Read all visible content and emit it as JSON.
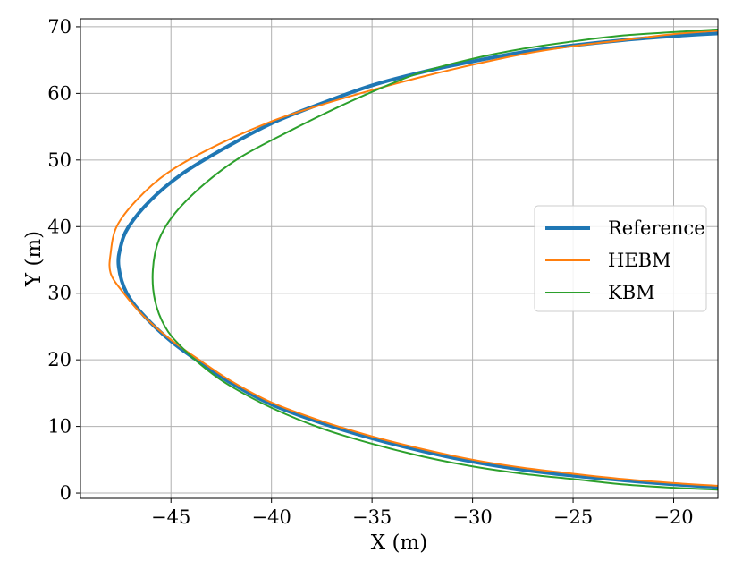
{
  "chart_data": {
    "type": "line",
    "title": "",
    "xlabel": "X (m)",
    "ylabel": "Y (m)",
    "xlim": [
      -49.5,
      -17.8
    ],
    "ylim": [
      -0.8,
      71.2
    ],
    "xticks": [
      -45,
      -40,
      -35,
      -30,
      -25,
      -20
    ],
    "xtick_labels": [
      "−45",
      "−40",
      "−35",
      "−30",
      "−25",
      "−20"
    ],
    "yticks": [
      0,
      10,
      20,
      30,
      40,
      50,
      60,
      70
    ],
    "ytick_labels": [
      "0",
      "10",
      "20",
      "30",
      "40",
      "50",
      "60",
      "70"
    ],
    "grid": true,
    "legend_position": "center-right",
    "series": [
      {
        "name": "Reference",
        "color": "#1f77b4",
        "points": [
          [
            -17.8,
            0.9
          ],
          [
            -20,
            1.3
          ],
          [
            -22.5,
            1.9
          ],
          [
            -25,
            2.6
          ],
          [
            -27.5,
            3.5
          ],
          [
            -30,
            4.7
          ],
          [
            -32.5,
            6.3
          ],
          [
            -35,
            8.2
          ],
          [
            -37.5,
            10.5
          ],
          [
            -40,
            13.3
          ],
          [
            -42,
            16.5
          ],
          [
            -43.5,
            19.5
          ],
          [
            -45,
            22.8
          ],
          [
            -46.3,
            26.5
          ],
          [
            -47.2,
            30.0
          ],
          [
            -47.6,
            34.0
          ],
          [
            -47.5,
            37.0
          ],
          [
            -47.1,
            40.0
          ],
          [
            -46.0,
            44.0
          ],
          [
            -44.5,
            47.8
          ],
          [
            -42.5,
            51.5
          ],
          [
            -40,
            55.5
          ],
          [
            -37.5,
            58.5
          ],
          [
            -35,
            61.2
          ],
          [
            -32.5,
            63.2
          ],
          [
            -30,
            64.8
          ],
          [
            -27.5,
            66.2
          ],
          [
            -25,
            67.2
          ],
          [
            -22.5,
            68.0
          ],
          [
            -20,
            68.6
          ],
          [
            -17.8,
            69.0
          ]
        ]
      },
      {
        "name": "HEBM",
        "color": "#ff7f0e",
        "points": [
          [
            -17.8,
            1.1
          ],
          [
            -20,
            1.5
          ],
          [
            -22.5,
            2.1
          ],
          [
            -25,
            2.9
          ],
          [
            -27.5,
            3.8
          ],
          [
            -30,
            5.0
          ],
          [
            -32.5,
            6.6
          ],
          [
            -35,
            8.5
          ],
          [
            -37.5,
            10.8
          ],
          [
            -40,
            13.6
          ],
          [
            -42,
            16.8
          ],
          [
            -43.5,
            19.8
          ],
          [
            -45,
            23.0
          ],
          [
            -46.4,
            26.7
          ],
          [
            -47.4,
            30.2
          ],
          [
            -48.0,
            33.0
          ],
          [
            -48.0,
            36.0
          ],
          [
            -47.7,
            40.0
          ],
          [
            -46.7,
            44.0
          ],
          [
            -45.2,
            48.0
          ],
          [
            -43,
            51.8
          ],
          [
            -40,
            55.8
          ],
          [
            -37.5,
            58.3
          ],
          [
            -35,
            60.5
          ],
          [
            -32.5,
            62.5
          ],
          [
            -30,
            64.3
          ],
          [
            -27.5,
            65.9
          ],
          [
            -25,
            67.1
          ],
          [
            -22.5,
            68.0
          ],
          [
            -20,
            68.9
          ],
          [
            -17.8,
            69.4
          ]
        ]
      },
      {
        "name": "KBM",
        "color": "#2ca02c",
        "points": [
          [
            -17.8,
            0.5
          ],
          [
            -20,
            0.8
          ],
          [
            -22.5,
            1.3
          ],
          [
            -25,
            2.1
          ],
          [
            -27.5,
            2.9
          ],
          [
            -30,
            4.0
          ],
          [
            -32.5,
            5.5
          ],
          [
            -35,
            7.4
          ],
          [
            -37.5,
            9.7
          ],
          [
            -40,
            12.8
          ],
          [
            -42,
            16.0
          ],
          [
            -43.2,
            18.5
          ],
          [
            -44.5,
            22.0
          ],
          [
            -45.3,
            25.0
          ],
          [
            -45.8,
            29.0
          ],
          [
            -45.9,
            33.5
          ],
          [
            -45.6,
            38.0
          ],
          [
            -44.8,
            42.0
          ],
          [
            -43.3,
            46.5
          ],
          [
            -41.5,
            50.5
          ],
          [
            -39,
            54.5
          ],
          [
            -36.5,
            58.2
          ],
          [
            -34,
            61.5
          ],
          [
            -32.5,
            63.2
          ],
          [
            -30,
            65.2
          ],
          [
            -27.5,
            66.7
          ],
          [
            -25,
            67.8
          ],
          [
            -22.5,
            68.7
          ],
          [
            -20,
            69.2
          ],
          [
            -17.8,
            69.6
          ]
        ]
      }
    ]
  }
}
